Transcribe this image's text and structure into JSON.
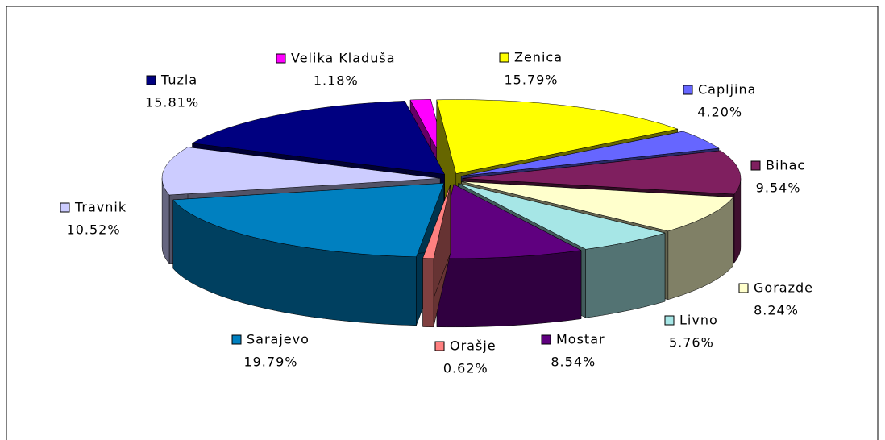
{
  "chart_data": {
    "type": "pie3d",
    "categories": [
      "Zenica",
      "Capljina",
      "Bihac",
      "Gorazde",
      "Livno",
      "Mostar",
      "Orašje",
      "Sarajevo",
      "Travnik",
      "Tuzla",
      "Velika Kladuša"
    ],
    "values": [
      15.79,
      4.2,
      9.54,
      8.24,
      5.76,
      8.54,
      0.62,
      19.79,
      10.52,
      15.81,
      1.18
    ],
    "value_labels": [
      "15.79%",
      "4.20%",
      "9.54%",
      "8.24%",
      "5.76%",
      "8.54%",
      "0.62%",
      "19.79%",
      "10.52%",
      "15.81%",
      "1.18%"
    ],
    "colors": [
      "#ffff00",
      "#6666ff",
      "#7f1f5f",
      "#ffffcc",
      "#a6e6e6",
      "#5f007f",
      "#ff8080",
      "#0080c0",
      "#ccccff",
      "#000080",
      "#ff00ff"
    ]
  }
}
